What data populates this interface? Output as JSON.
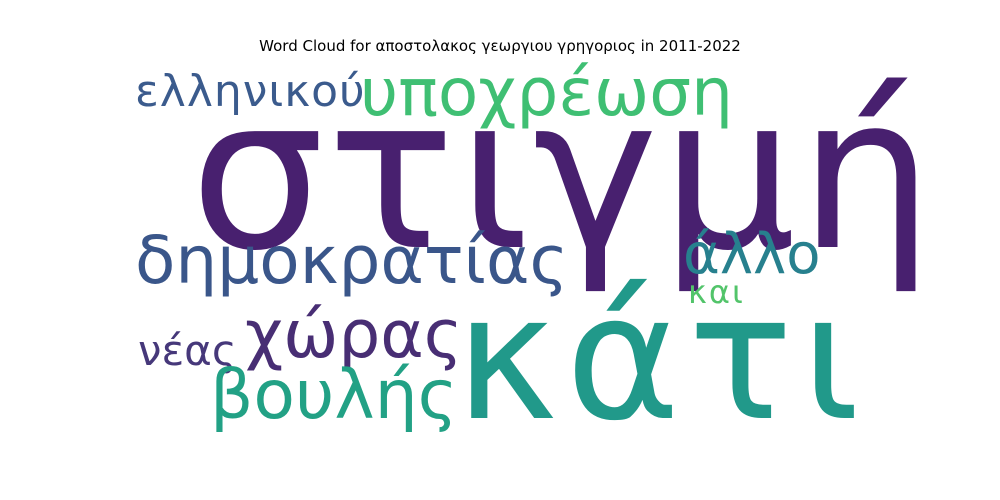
{
  "title": "Word Cloud for αποστολακος γεωργιου γρηγοριος in 2011-2022",
  "words": [
    {
      "text": "στιγμή",
      "color": "#48206f"
    },
    {
      "text": "κάτι",
      "color": "#21998a"
    },
    {
      "text": "υποχρέωση",
      "color": "#3fbf73"
    },
    {
      "text": "ελληνικού",
      "color": "#3b5b8d"
    },
    {
      "text": "δημοκρατίας",
      "color": "#3a568a"
    },
    {
      "text": "άλλο",
      "color": "#27808e"
    },
    {
      "text": "και",
      "color": "#52c46a"
    },
    {
      "text": "χώρας",
      "color": "#482e74"
    },
    {
      "text": "νέας",
      "color": "#46387a"
    },
    {
      "text": "βουλής",
      "color": "#22a185"
    }
  ]
}
